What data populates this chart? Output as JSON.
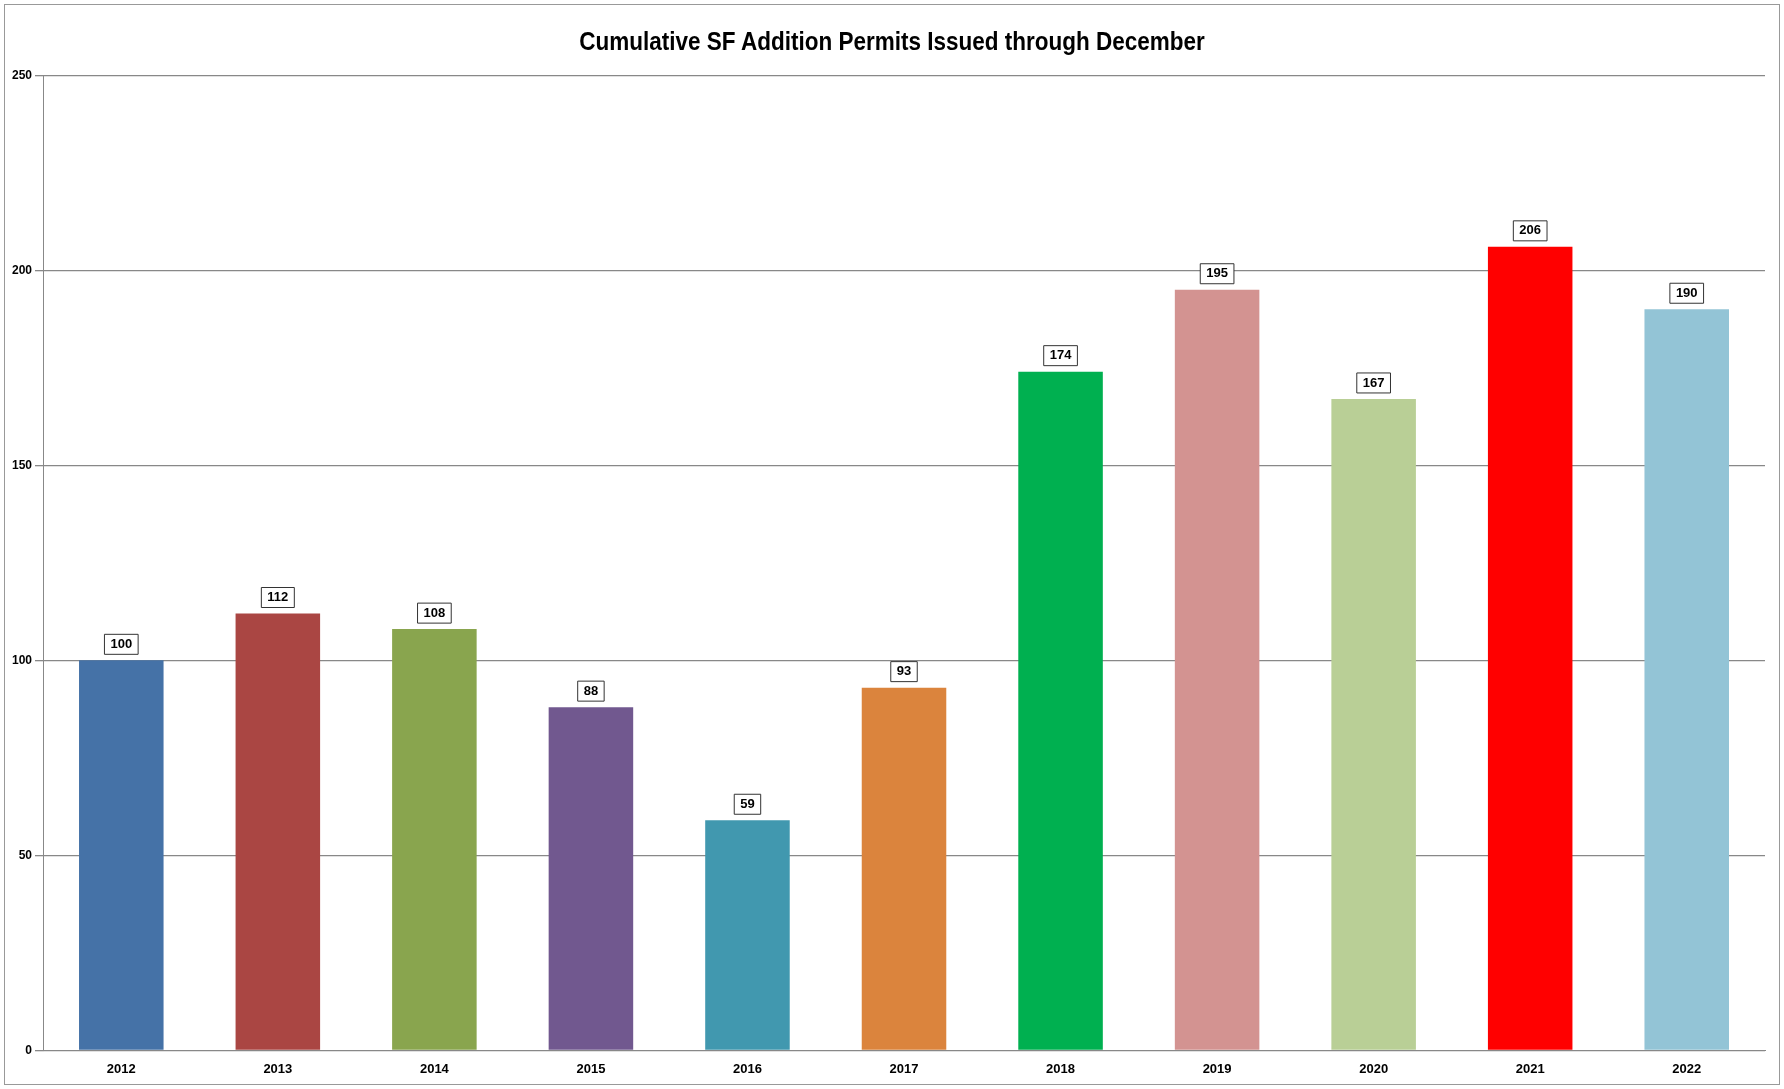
{
  "chart_data": {
    "type": "bar",
    "title": "Cumulative SF Addition Permits Issued through December",
    "categories": [
      "2012",
      "2013",
      "2014",
      "2015",
      "2016",
      "2017",
      "2018",
      "2019",
      "2020",
      "2021",
      "2022"
    ],
    "values": [
      100,
      112,
      108,
      88,
      59,
      93,
      174,
      195,
      167,
      206,
      190
    ],
    "colors": [
      "#4572a7",
      "#aa4643",
      "#89a54e",
      "#71588f",
      "#4198af",
      "#db843d",
      "#00b050",
      "#d39391",
      "#b9cf96",
      "#ff0000",
      "#93c4d6"
    ],
    "ylim": [
      0,
      250
    ],
    "yticks": [
      0,
      50,
      100,
      150,
      200,
      250
    ],
    "grid": "y",
    "legend": false,
    "data_labels": true
  }
}
